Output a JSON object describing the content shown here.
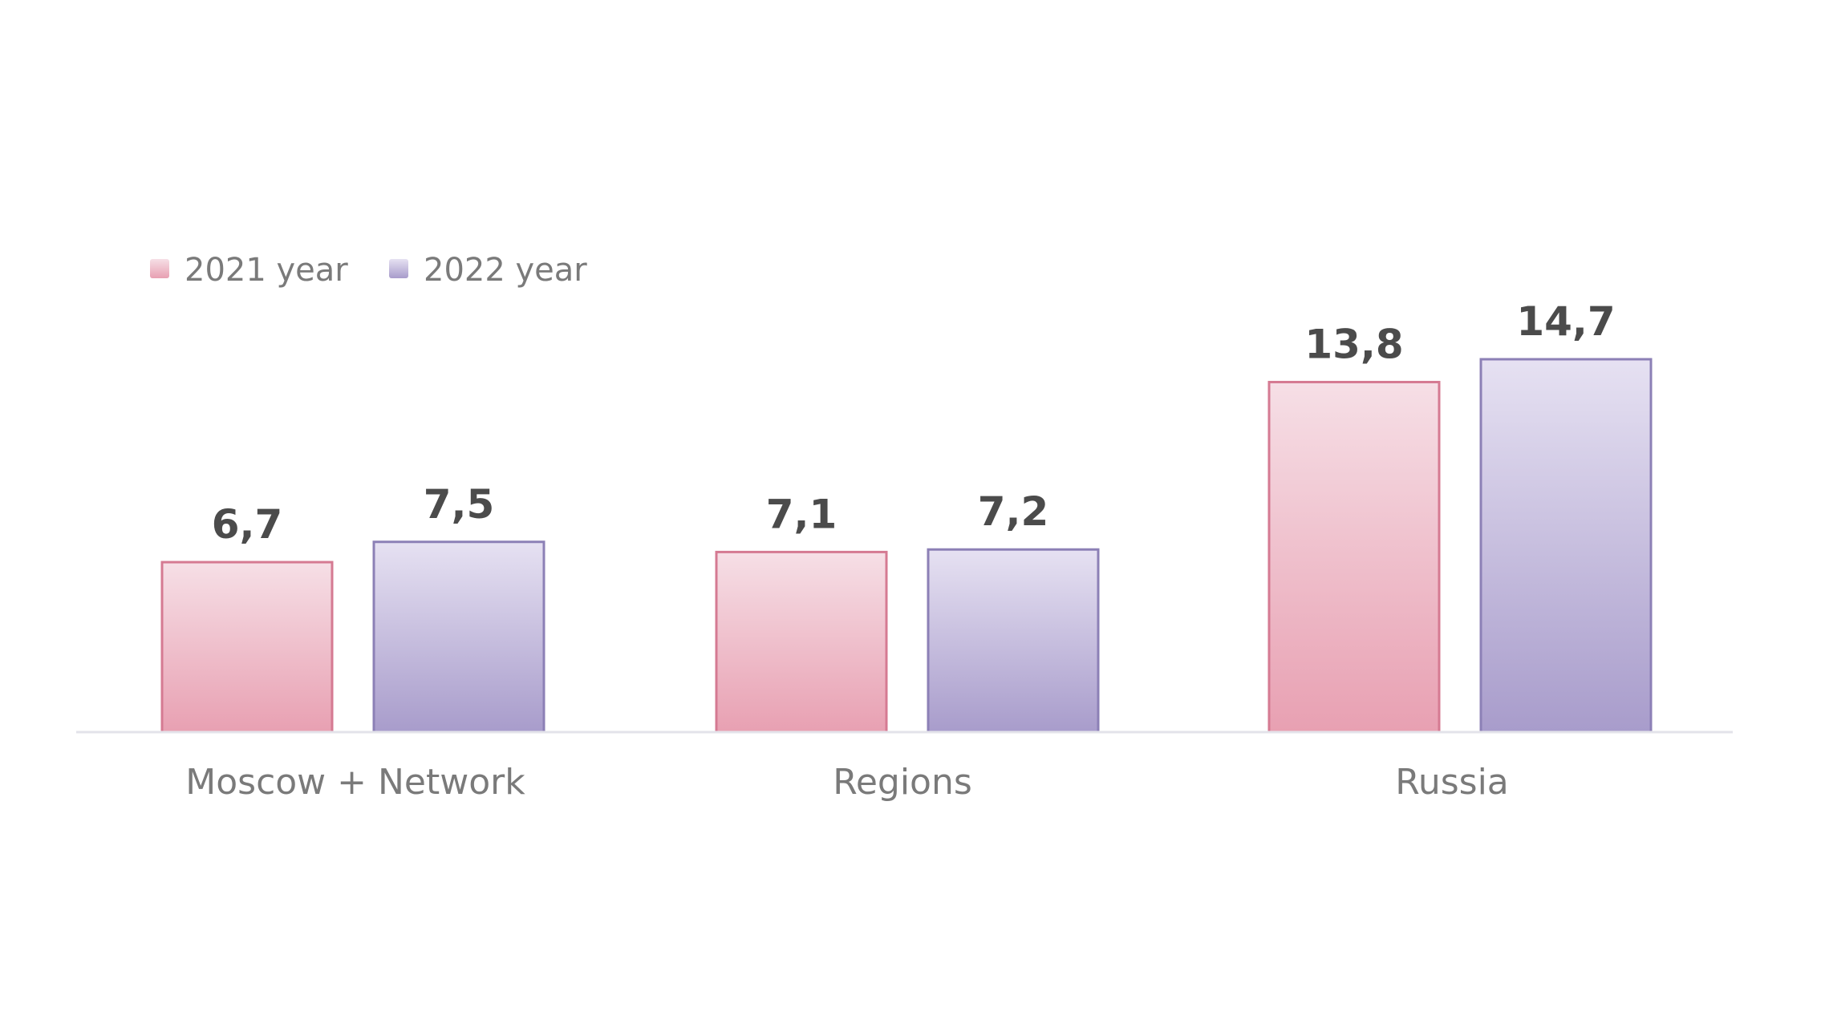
{
  "chart_data": {
    "type": "bar",
    "categories": [
      "Moscow + Network",
      "Regions",
      "Russia"
    ],
    "series": [
      {
        "name": "2021 year",
        "values": [
          6.7,
          7.1,
          13.8
        ],
        "labels": [
          "6,7",
          "7,1",
          "13,8"
        ],
        "color_top": "#f6dfe6",
        "color_bottom": "#e8a0b2",
        "stroke": "#d57a92"
      },
      {
        "name": "2022 year",
        "values": [
          7.5,
          7.2,
          14.7
        ],
        "labels": [
          "7,5",
          "7,2",
          "14,7"
        ],
        "color_top": "#e6e1f2",
        "color_bottom": "#a89ccb",
        "stroke": "#8c80b6"
      }
    ],
    "ylim": [
      0,
      16
    ],
    "grid": false,
    "legend_position": "top-left",
    "xlabel": "",
    "ylabel": "",
    "title": ""
  }
}
